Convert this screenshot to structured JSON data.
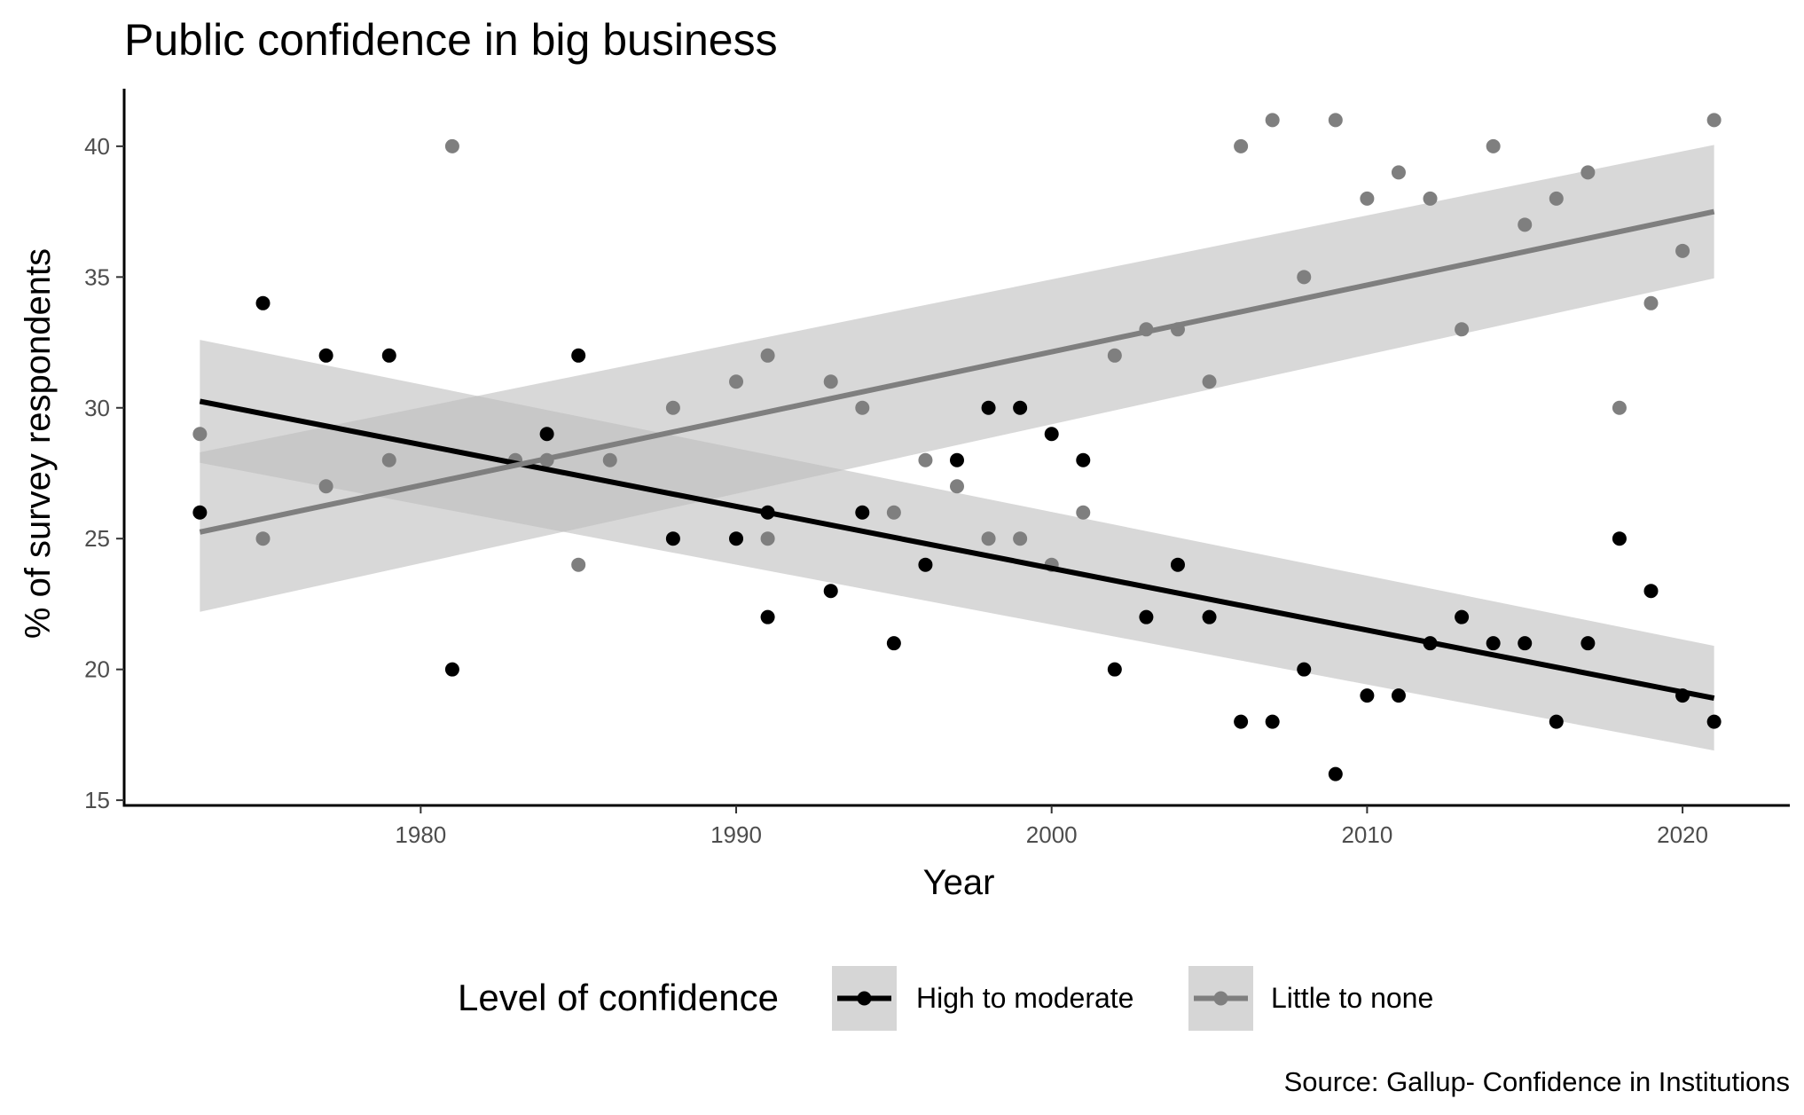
{
  "chart_data": {
    "type": "scatter",
    "title": "Public confidence in big business",
    "xlabel": "Year",
    "ylabel": "% of survey respondents",
    "caption": "Source: Gallup- Confidence in Institutions",
    "xlim": [
      1970.6,
      2023.4
    ],
    "ylim": [
      14.8,
      42.2
    ],
    "x_ticks": [
      1980,
      1990,
      2000,
      2010,
      2020
    ],
    "y_ticks": [
      15,
      20,
      25,
      30,
      35,
      40
    ],
    "grid": false,
    "legend": {
      "title": "Level of confidence",
      "position": "bottom",
      "entries": [
        "High to moderate",
        "Little to none"
      ]
    },
    "series": [
      {
        "name": "High to moderate",
        "color": "#000000",
        "points": [
          [
            1973,
            26
          ],
          [
            1975,
            34
          ],
          [
            1977,
            32
          ],
          [
            1979,
            32
          ],
          [
            1981,
            20
          ],
          [
            1984,
            29
          ],
          [
            1985,
            32
          ],
          [
            1988,
            25
          ],
          [
            1990,
            25
          ],
          [
            1991,
            26
          ],
          [
            1991,
            22
          ],
          [
            1993,
            23
          ],
          [
            1994,
            26
          ],
          [
            1995,
            21
          ],
          [
            1996,
            24
          ],
          [
            1997,
            28
          ],
          [
            1998,
            30
          ],
          [
            1999,
            30
          ],
          [
            2000,
            29
          ],
          [
            2001,
            28
          ],
          [
            2002,
            20
          ],
          [
            2003,
            22
          ],
          [
            2004,
            24
          ],
          [
            2005,
            22
          ],
          [
            2006,
            18
          ],
          [
            2007,
            18
          ],
          [
            2008,
            20
          ],
          [
            2009,
            16
          ],
          [
            2010,
            19
          ],
          [
            2011,
            19
          ],
          [
            2012,
            21
          ],
          [
            2013,
            22
          ],
          [
            2014,
            21
          ],
          [
            2015,
            21
          ],
          [
            2016,
            18
          ],
          [
            2017,
            21
          ],
          [
            2018,
            25
          ],
          [
            2019,
            23
          ],
          [
            2020,
            19
          ],
          [
            2021,
            18
          ]
        ],
        "trend": {
          "x": [
            1973,
            2021
          ],
          "y": [
            30.25,
            18.9
          ]
        },
        "band_lower": {
          "x": [
            1973,
            2021
          ],
          "y": [
            27.9,
            16.9
          ]
        },
        "band_upper": {
          "x": [
            1973,
            2021
          ],
          "y": [
            32.6,
            20.9
          ]
        }
      },
      {
        "name": "Little to none",
        "color": "#7f7f7f",
        "points": [
          [
            1973,
            29
          ],
          [
            1975,
            25
          ],
          [
            1977,
            27
          ],
          [
            1979,
            28
          ],
          [
            1981,
            40
          ],
          [
            1983,
            28
          ],
          [
            1984,
            28
          ],
          [
            1985,
            24
          ],
          [
            1986,
            28
          ],
          [
            1988,
            30
          ],
          [
            1990,
            31
          ],
          [
            1991,
            32
          ],
          [
            1991,
            25
          ],
          [
            1993,
            31
          ],
          [
            1994,
            30
          ],
          [
            1995,
            26
          ],
          [
            1996,
            28
          ],
          [
            1997,
            27
          ],
          [
            1998,
            25
          ],
          [
            1999,
            25
          ],
          [
            2000,
            24
          ],
          [
            2001,
            26
          ],
          [
            2002,
            32
          ],
          [
            2003,
            33
          ],
          [
            2004,
            33
          ],
          [
            2005,
            31
          ],
          [
            2006,
            40
          ],
          [
            2007,
            41
          ],
          [
            2008,
            35
          ],
          [
            2009,
            41
          ],
          [
            2010,
            38
          ],
          [
            2011,
            39
          ],
          [
            2012,
            38
          ],
          [
            2013,
            33
          ],
          [
            2014,
            40
          ],
          [
            2015,
            37
          ],
          [
            2016,
            38
          ],
          [
            2017,
            39
          ],
          [
            2018,
            30
          ],
          [
            2019,
            34
          ],
          [
            2020,
            36
          ],
          [
            2021,
            41
          ]
        ],
        "trend": {
          "x": [
            1973,
            2021
          ],
          "y": [
            25.25,
            37.5
          ]
        },
        "band_lower": {
          "x": [
            1973,
            2021
          ],
          "y": [
            22.2,
            34.95
          ]
        },
        "band_upper": {
          "x": [
            1973,
            2021
          ],
          "y": [
            28.3,
            40.05
          ]
        }
      }
    ],
    "band_color": "#bebebe"
  }
}
